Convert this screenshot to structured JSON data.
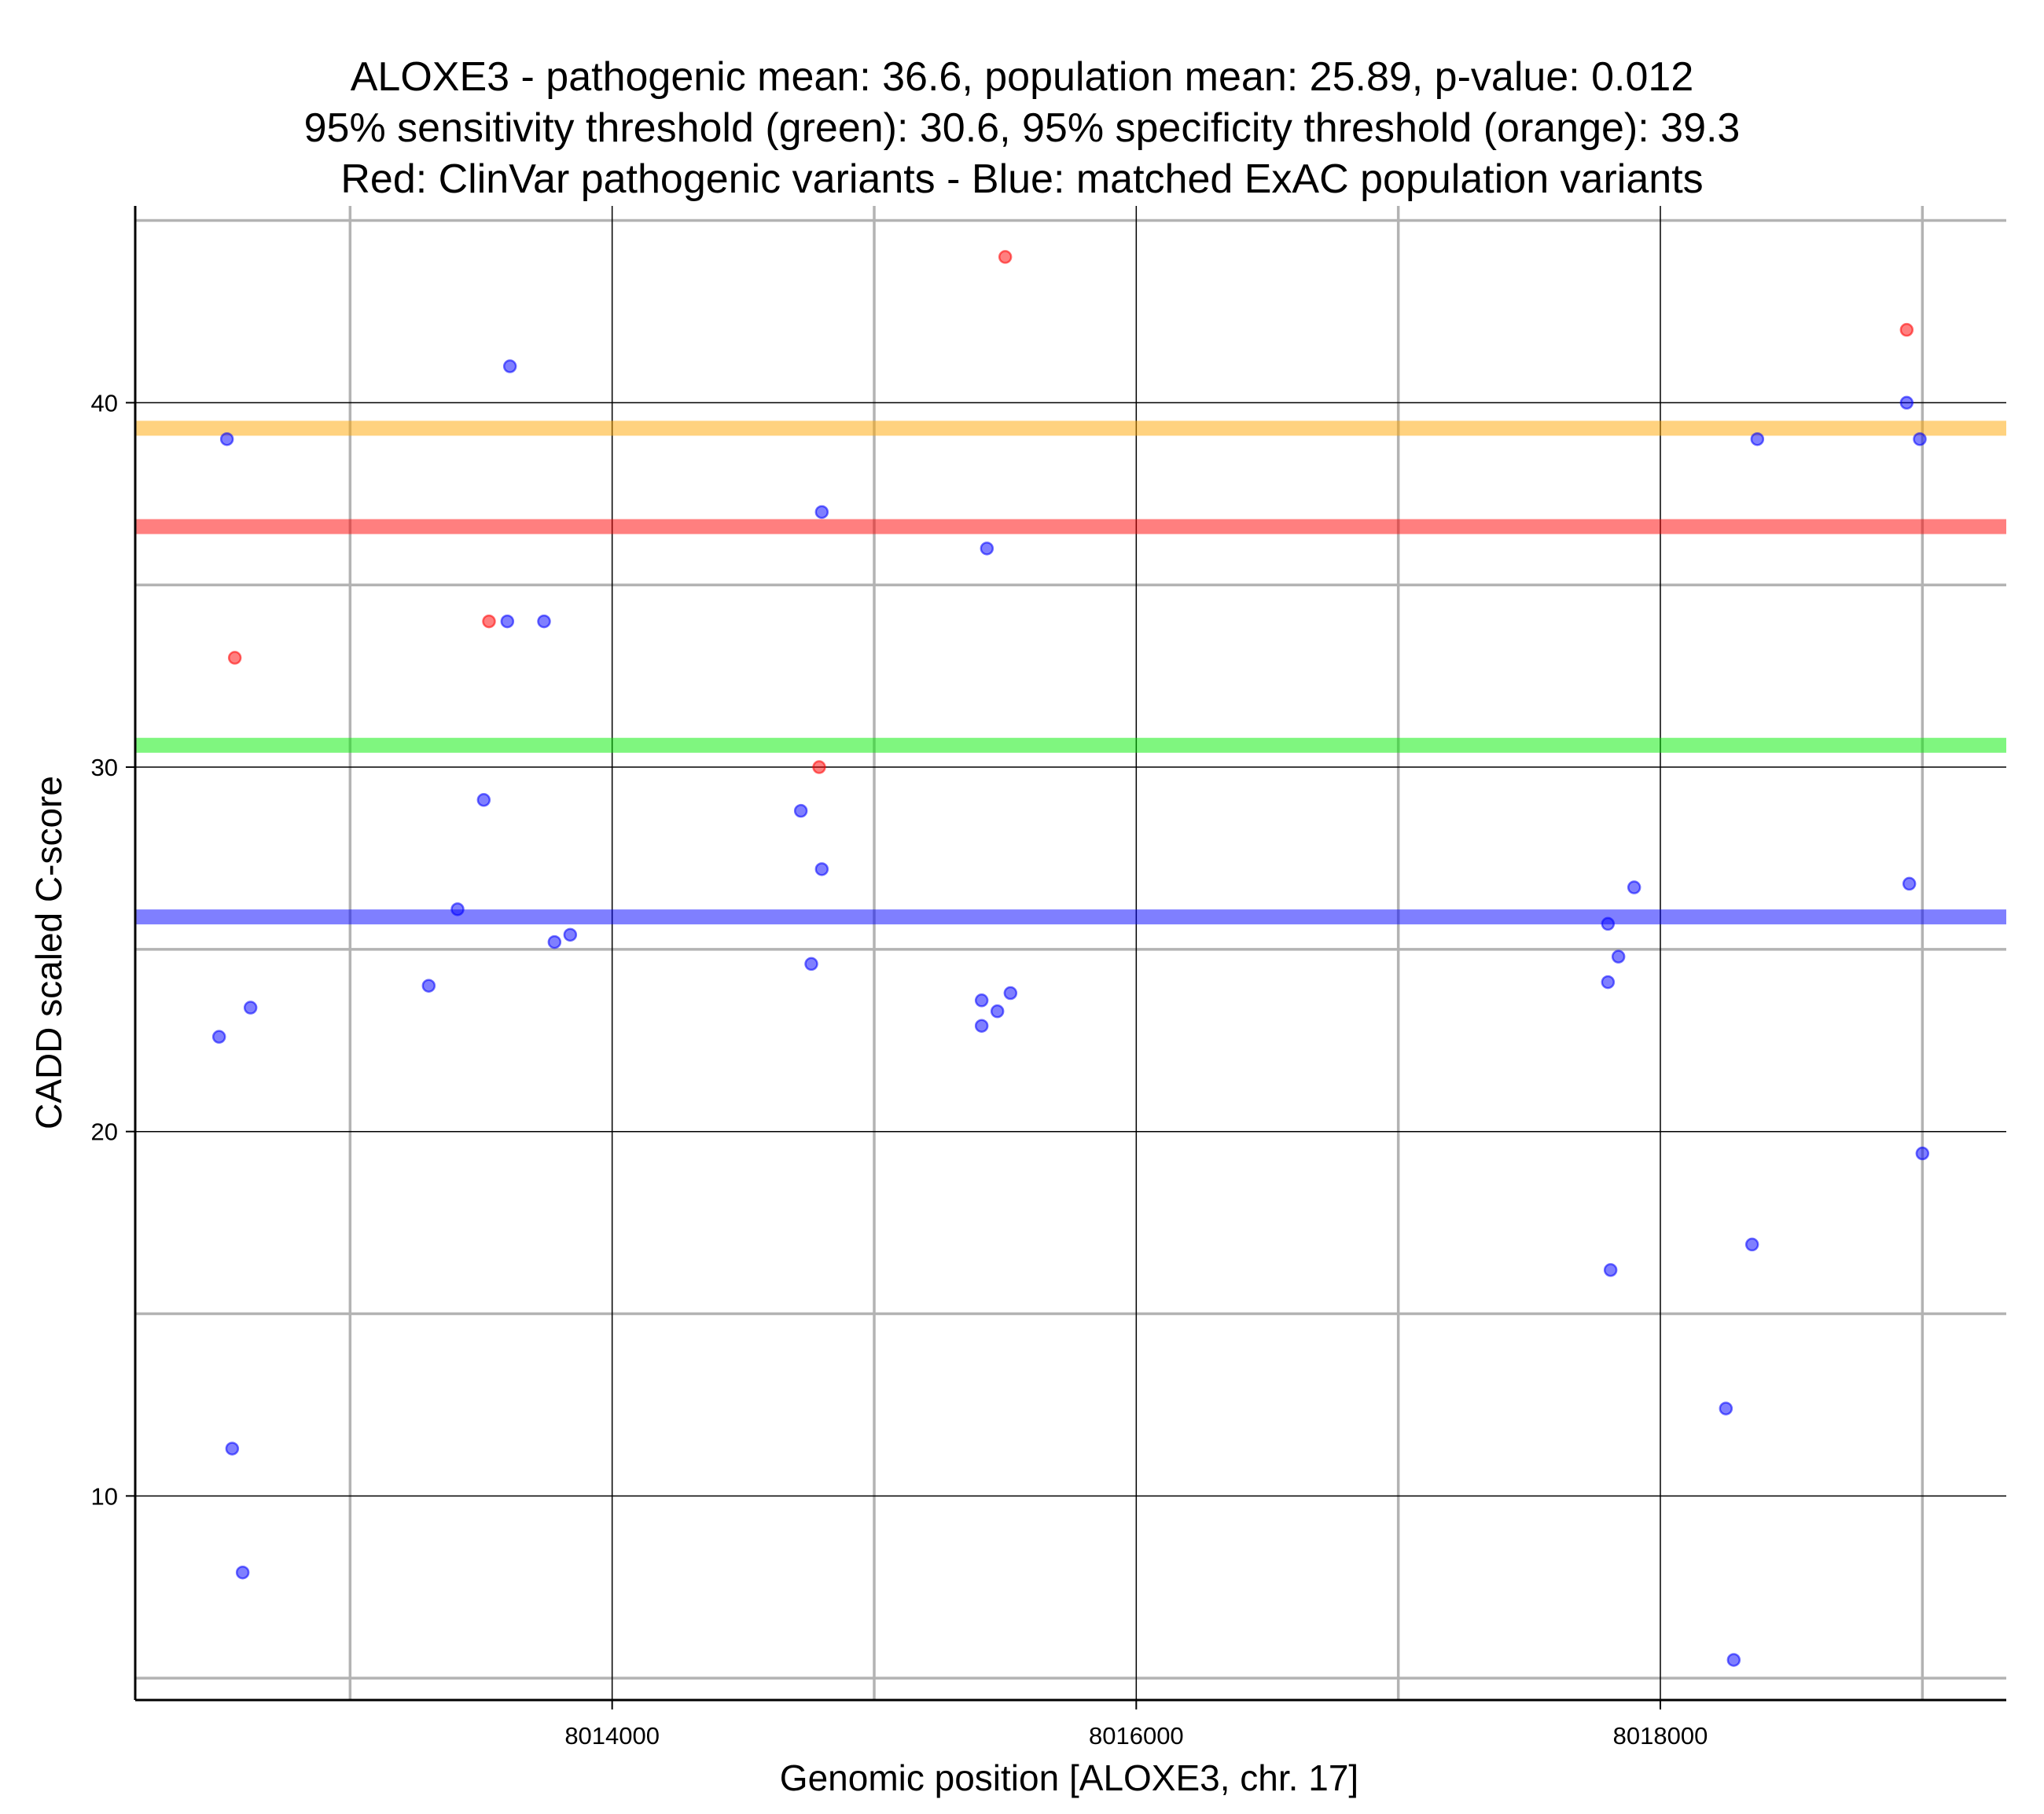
{
  "chart_data": {
    "type": "scatter",
    "title_lines": [
      "ALOXE3 - pathogenic mean: 36.6, population mean: 25.89, p-value: 0.012",
      "95% sensitivity threshold (green): 30.6, 95% specificity threshold (orange): 39.3",
      "Red: ClinVar pathogenic variants - Blue: matched ExAC population variants"
    ],
    "xlabel": "Genomic position [ALOXE3, chr. 17]",
    "ylabel": "CADD scaled C-score",
    "xlim": [
      8012180,
      8019320
    ],
    "ylim": [
      4.4,
      45.4
    ],
    "x_ticks": [
      8014000,
      8016000,
      8018000
    ],
    "x_tick_labels": [
      "8014000",
      "8016000",
      "8018000"
    ],
    "x_minor_grid": [
      8013000,
      8015000,
      8017000,
      8019000
    ],
    "y_ticks": [
      10,
      20,
      30,
      40
    ],
    "y_tick_labels": [
      "10",
      "20",
      "30",
      "40"
    ],
    "y_minor_grid": [
      5,
      15,
      25,
      35,
      45
    ],
    "grid": true,
    "colors": {
      "pathogenic": "#ff0000",
      "population": "#0000ff",
      "sensitivity": "#00ee00",
      "specificity": "#ffa500",
      "major_grid": "#000000",
      "minor_grid": "#b3b3b3"
    },
    "reference_lines": [
      {
        "y": 39.3,
        "color": "#ffa500"
      },
      {
        "y": 36.6,
        "color": "#ff0000"
      },
      {
        "y": 30.6,
        "color": "#00ee00"
      },
      {
        "y": 25.89,
        "color": "#0000ff"
      }
    ],
    "series": [
      {
        "key": "pathogenic",
        "color": "#ff0000",
        "points": [
          {
            "x": 8012560,
            "y": 33.0
          },
          {
            "x": 8013530,
            "y": 34.0
          },
          {
            "x": 8014790,
            "y": 30.0
          },
          {
            "x": 8015500,
            "y": 44.0
          },
          {
            "x": 8018940,
            "y": 42.0
          }
        ]
      },
      {
        "key": "population",
        "color": "#0000ff",
        "points": [
          {
            "x": 8012530,
            "y": 39.0
          },
          {
            "x": 8012500,
            "y": 22.6
          },
          {
            "x": 8012620,
            "y": 23.4
          },
          {
            "x": 8012550,
            "y": 11.3
          },
          {
            "x": 8012590,
            "y": 7.9
          },
          {
            "x": 8013300,
            "y": 24.0
          },
          {
            "x": 8013410,
            "y": 26.1
          },
          {
            "x": 8013510,
            "y": 29.1
          },
          {
            "x": 8013600,
            "y": 34.0
          },
          {
            "x": 8013610,
            "y": 41.0
          },
          {
            "x": 8013740,
            "y": 34.0
          },
          {
            "x": 8013780,
            "y": 25.2
          },
          {
            "x": 8013840,
            "y": 25.4
          },
          {
            "x": 8014720,
            "y": 28.8
          },
          {
            "x": 8014760,
            "y": 24.6
          },
          {
            "x": 8014800,
            "y": 37.0
          },
          {
            "x": 8014800,
            "y": 27.2
          },
          {
            "x": 8015410,
            "y": 23.6
          },
          {
            "x": 8015410,
            "y": 22.9
          },
          {
            "x": 8015430,
            "y": 36.0
          },
          {
            "x": 8015470,
            "y": 23.3
          },
          {
            "x": 8015520,
            "y": 23.8
          },
          {
            "x": 8017800,
            "y": 25.7
          },
          {
            "x": 8017800,
            "y": 24.1
          },
          {
            "x": 8017810,
            "y": 16.2
          },
          {
            "x": 8017840,
            "y": 24.8
          },
          {
            "x": 8017900,
            "y": 26.7
          },
          {
            "x": 8018250,
            "y": 12.4
          },
          {
            "x": 8018280,
            "y": 5.5
          },
          {
            "x": 8018350,
            "y": 16.9
          },
          {
            "x": 8018370,
            "y": 39.0
          },
          {
            "x": 8018940,
            "y": 40.0
          },
          {
            "x": 8018950,
            "y": 26.8
          },
          {
            "x": 8018990,
            "y": 39.0
          },
          {
            "x": 8019000,
            "y": 19.4
          }
        ]
      }
    ]
  }
}
